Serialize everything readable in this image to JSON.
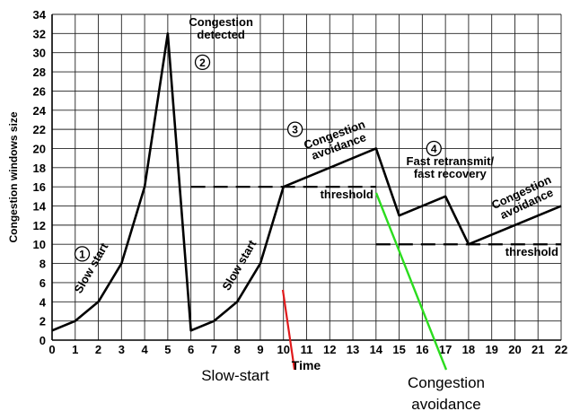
{
  "chart_data": {
    "type": "line",
    "title": "",
    "xlabel": "Time",
    "ylabel": "Congestion windows size",
    "xlim": [
      0,
      22
    ],
    "ylim": [
      0,
      34
    ],
    "x_ticks": [
      0,
      1,
      2,
      3,
      4,
      5,
      6,
      7,
      8,
      9,
      10,
      11,
      12,
      13,
      14,
      15,
      16,
      17,
      18,
      19,
      20,
      21,
      22
    ],
    "y_ticks": [
      0,
      2,
      4,
      6,
      8,
      10,
      12,
      14,
      16,
      18,
      20,
      22,
      24,
      26,
      28,
      30,
      32,
      34
    ],
    "grid": true,
    "series": [
      {
        "x": [
          0,
          1,
          2,
          3,
          4,
          5,
          6,
          7,
          8,
          9,
          10,
          14,
          15,
          17,
          18,
          22
        ],
        "y": [
          1,
          2,
          4,
          8,
          16,
          32,
          1,
          2,
          4,
          8,
          16,
          20,
          13,
          15,
          10,
          14
        ],
        "color": "#000000"
      }
    ],
    "thresholds": [
      {
        "label": "threshold",
        "y": 16,
        "x_start": 6,
        "x_end": 14
      },
      {
        "label": "threshold",
        "y": 10,
        "x_start": 14,
        "x_end": 22
      }
    ],
    "annotations": [
      {
        "number": "1",
        "text": "Slow start",
        "x": 1.7,
        "y": 7.5,
        "circle_x": 1.3,
        "circle_y": 9,
        "angle": -60
      },
      {
        "number": "2",
        "text": "Congestion detected",
        "x": 7.3,
        "y": 32.5,
        "circle_x": 6.5,
        "circle_y": 29,
        "angle": 0
      },
      {
        "number": "3",
        "text": "Congestion avoidance",
        "x": 12.3,
        "y": 20.8,
        "circle_x": 10.5,
        "circle_y": 22,
        "angle": -20
      },
      {
        "number": "4",
        "text": "Fast retransmit/ fast recovery",
        "x": 17.2,
        "y": 18,
        "circle_x": 16.5,
        "circle_y": 20,
        "angle": 0
      },
      {
        "number": "",
        "text": "Congestion avoidance",
        "x": 20.4,
        "y": 14.8,
        "circle_x": null,
        "circle_y": null,
        "angle": -25
      },
      {
        "number": "",
        "text": "Slow start",
        "x": 8.1,
        "y": 7.8,
        "circle_x": null,
        "circle_y": null,
        "angle": -60
      }
    ],
    "callouts": [
      {
        "text": "Slow-start",
        "color": "#e0191b"
      },
      {
        "text": "Congestion avoidance",
        "color": "#2bdc1e"
      }
    ]
  }
}
